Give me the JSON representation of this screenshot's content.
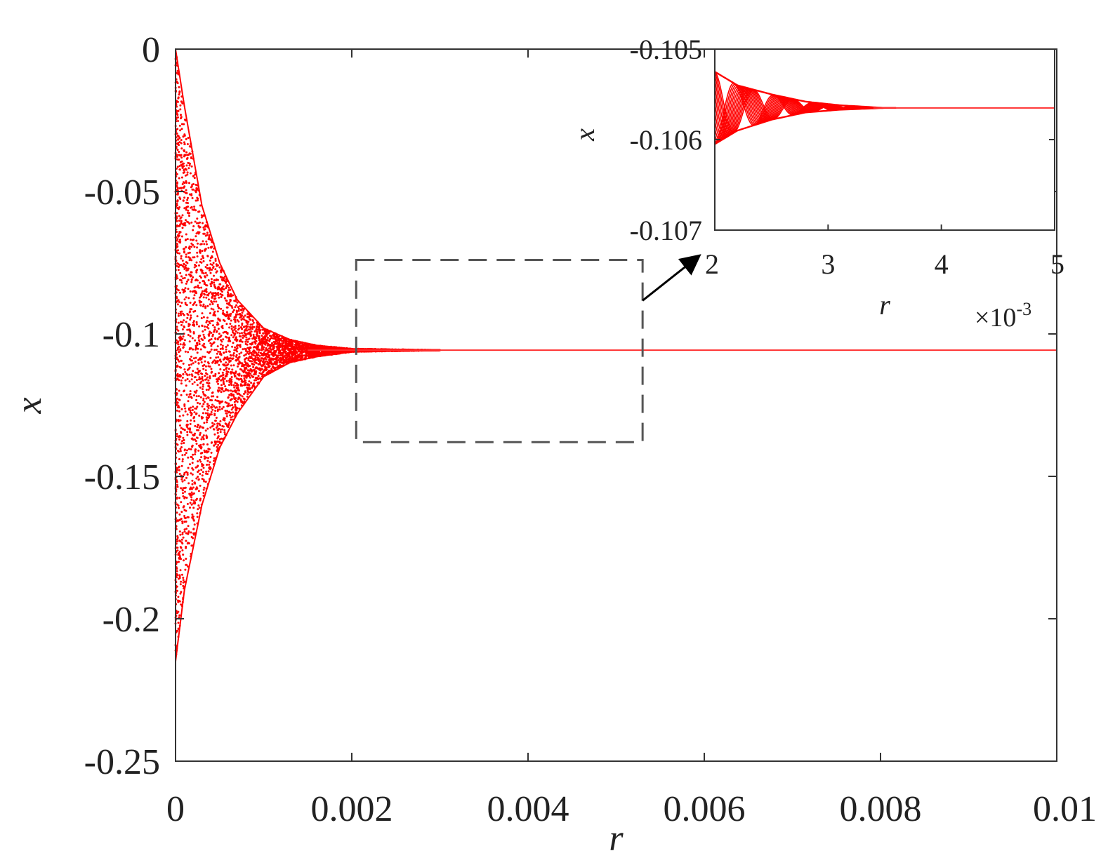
{
  "chart_data": [
    {
      "type": "scatter",
      "name": "main",
      "xlabel": "r",
      "ylabel": "x",
      "xlim": [
        0,
        0.01
      ],
      "ylim": [
        -0.25,
        0
      ],
      "xticks": [
        "0",
        "0.002",
        "0.004",
        "0.006",
        "0.008",
        "0.01"
      ],
      "xtick_values": [
        0,
        0.002,
        0.004,
        0.006,
        0.008,
        0.01
      ],
      "yticks": [
        "0",
        "-0.05",
        "-0.1",
        "-0.15",
        "-0.2",
        "-0.25"
      ],
      "ytick_values": [
        0,
        -0.05,
        -0.1,
        -0.15,
        -0.2,
        -0.25
      ],
      "grid": false,
      "series_color": "#ff0000",
      "converged_value": -0.1057,
      "envelope": {
        "r": [
          0,
          0.0001,
          0.0003,
          0.0005,
          0.0007,
          0.001,
          0.0013,
          0.0016,
          0.002,
          0.003
        ],
        "upper": [
          0,
          -0.02,
          -0.055,
          -0.075,
          -0.088,
          -0.098,
          -0.102,
          -0.104,
          -0.1052,
          -0.1057
        ],
        "lower": [
          -0.215,
          -0.19,
          -0.16,
          -0.14,
          -0.128,
          -0.115,
          -0.11,
          -0.108,
          -0.1063,
          -0.1057
        ]
      },
      "zoom_box": {
        "r": [
          0.00205,
          0.0053
        ],
        "x": [
          -0.074,
          -0.138
        ]
      },
      "points_shown": "dense"
    },
    {
      "type": "scatter",
      "name": "inset",
      "xlabel": "r",
      "ylabel": "x",
      "x_multiplier": "×10",
      "x_multiplier_exp": "-3",
      "xlim": [
        2,
        5
      ],
      "ylim": [
        -0.107,
        -0.105
      ],
      "xticks": [
        "2",
        "3",
        "4",
        "5"
      ],
      "xtick_values": [
        2,
        3,
        4,
        5
      ],
      "yticks": [
        "-0.105",
        "-0.106",
        "-0.107"
      ],
      "ytick_values": [
        -0.105,
        -0.106,
        -0.107
      ],
      "series_color": "#ff0000",
      "converged_value": -0.10565,
      "envelope": {
        "r": [
          2,
          2.2,
          2.5,
          2.8,
          3.1,
          3.5,
          5
        ],
        "upper": [
          -0.10525,
          -0.1054,
          -0.1055,
          -0.10558,
          -0.10562,
          -0.10565,
          -0.10565
        ],
        "lower": [
          -0.10605,
          -0.1059,
          -0.10578,
          -0.1057,
          -0.10567,
          -0.10565,
          -0.10565
        ]
      }
    }
  ]
}
